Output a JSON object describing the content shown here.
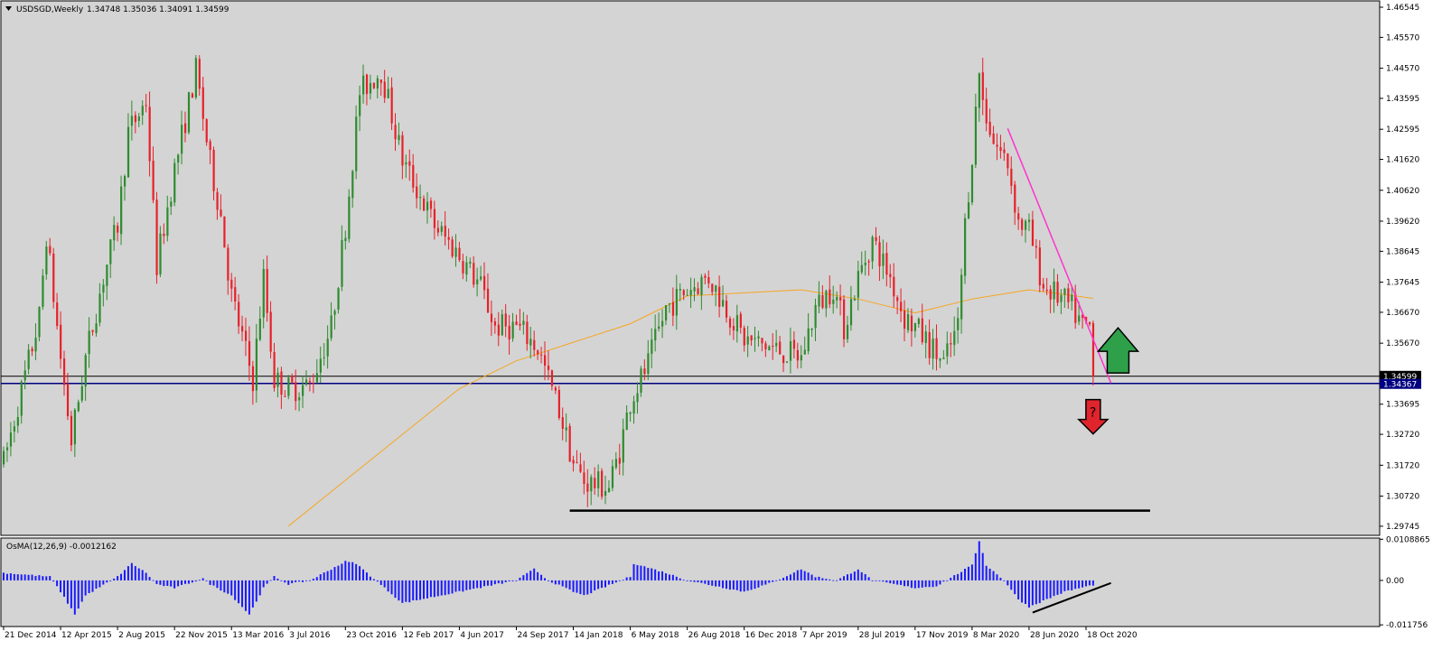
{
  "symbol_header": {
    "title": "USDSGD,Weekly",
    "ohlc": "1.34748 1.35036 1.34091 1.34599"
  },
  "osma_header": {
    "title": "OsMA(12,26,9) -0.0012162"
  },
  "colors": {
    "background": "#d4d4d4",
    "bull_candle": "#2e8b2e",
    "bear_candle": "#e8202a",
    "ma_line": "#f5a623",
    "trend_line": "#ff33cc",
    "support_line": "#000000",
    "price_line": "#000080",
    "histogram": "#1a1aff",
    "up_arrow": "#2ea04a",
    "down_arrow": "#e0242c"
  },
  "icons": {
    "up_arrow": "up-arrow-icon",
    "down_arrow": "down-arrow-question-icon"
  },
  "down_arrow_glyph": "?",
  "chart_data": [
    {
      "type": "candlestick",
      "title": "USDSGD,Weekly",
      "ylim": [
        1.2945,
        1.4675
      ],
      "y_ticks": [
        "1.46545",
        "1.45570",
        "1.44570",
        "1.43595",
        "1.42595",
        "1.41620",
        "1.40620",
        "1.39620",
        "1.38645",
        "1.37645",
        "1.36670",
        "1.35670",
        "1.34599",
        "1.34367",
        "1.33695",
        "1.32720",
        "1.31720",
        "1.30720",
        "1.29745"
      ],
      "x_ticks": [
        "21 Dec 2014",
        "12 Apr 2015",
        "2 Aug 2015",
        "22 Nov 2015",
        "13 Mar 2016",
        "3 Jul 2016",
        "23 Oct 2016",
        "12 Feb 2017",
        "4 Jun 2017",
        "24 Sep 2017",
        "14 Jan 2018",
        "6 May 2018",
        "26 Aug 2018",
        "16 Dec 2018",
        "7 Apr 2019",
        "28 Jul 2019",
        "17 Nov 2019",
        "8 Mar 2020",
        "28 Jun 2020",
        "18 Oct 2020"
      ],
      "last_price": 1.34599,
      "bid_line": 1.34367,
      "anchors": [
        [
          "21 Dec 2014",
          1.318
        ],
        [
          "1 Mar 2015",
          1.365
        ],
        [
          "15 Mar 2015",
          1.392
        ],
        [
          "12 Apr 2015",
          1.352
        ],
        [
          "3 May 2015",
          1.325
        ],
        [
          "31 May 2015",
          1.352
        ],
        [
          "5 Jul 2015",
          1.378
        ],
        [
          "2 Aug 2015",
          1.395
        ],
        [
          "23 Aug 2015",
          1.425
        ],
        [
          "27 Sep 2015",
          1.435
        ],
        [
          "18 Oct 2015",
          1.382
        ],
        [
          "22 Nov 2015",
          1.413
        ],
        [
          "3 Jan 2016",
          1.445
        ],
        [
          "31 Jan 2016",
          1.415
        ],
        [
          "21 Feb 2016",
          1.398
        ],
        [
          "13 Mar 2016",
          1.372
        ],
        [
          "24 Apr 2016",
          1.345
        ],
        [
          "15 May 2016",
          1.378
        ],
        [
          "5 Jun 2016",
          1.345
        ],
        [
          "3 Jul 2016",
          1.342
        ],
        [
          "14 Aug 2016",
          1.343
        ],
        [
          "25 Sep 2016",
          1.362
        ],
        [
          "23 Oct 2016",
          1.395
        ],
        [
          "20 Nov 2016",
          1.438
        ],
        [
          "1 Jan 2017",
          1.445
        ],
        [
          "12 Feb 2017",
          1.416
        ],
        [
          "16 Apr 2017",
          1.395
        ],
        [
          "4 Jun 2017",
          1.385
        ],
        [
          "16 Jul 2017",
          1.375
        ],
        [
          "13 Aug 2017",
          1.362
        ],
        [
          "24 Sep 2017",
          1.362
        ],
        [
          "8 Oct 2017",
          1.36
        ],
        [
          "5 Nov 2017",
          1.355
        ],
        [
          "26 Nov 2017",
          1.345
        ],
        [
          "17 Dec 2017",
          1.335
        ],
        [
          "14 Jan 2018",
          1.318
        ],
        [
          "4 Feb 2018",
          1.312
        ],
        [
          "25 Mar 2018",
          1.31
        ],
        [
          "15 Apr 2018",
          1.322
        ],
        [
          "6 May 2018",
          1.338
        ],
        [
          "10 Jun 2018",
          1.35
        ],
        [
          "15 Jul 2018",
          1.368
        ],
        [
          "26 Aug 2018",
          1.374
        ],
        [
          "7 Oct 2018",
          1.378
        ],
        [
          "28 Oct 2018",
          1.372
        ],
        [
          "16 Dec 2018",
          1.358
        ],
        [
          "10 Feb 2019",
          1.355
        ],
        [
          "7 Apr 2019",
          1.352
        ],
        [
          "5 May 2019",
          1.368
        ],
        [
          "9 Jun 2019",
          1.375
        ],
        [
          "30 Jun 2019",
          1.362
        ],
        [
          "28 Jul 2019",
          1.378
        ],
        [
          "25 Aug 2019",
          1.39
        ],
        [
          "29 Sep 2019",
          1.378
        ],
        [
          "27 Oct 2019",
          1.365
        ],
        [
          "17 Nov 2019",
          1.362
        ],
        [
          "12 Jan 2020",
          1.35
        ],
        [
          "9 Feb 2020",
          1.362
        ],
        [
          "23 Feb 2020",
          1.395
        ],
        [
          "8 Mar 2020",
          1.418
        ],
        [
          "22 Mar 2020",
          1.445
        ],
        [
          "29 Mar 2020",
          1.435
        ],
        [
          "19 Apr 2020",
          1.422
        ],
        [
          "17 May 2020",
          1.415
        ],
        [
          "7 Jun 2020",
          1.396
        ],
        [
          "28 Jun 2020",
          1.393
        ],
        [
          "26 Jul 2020",
          1.375
        ],
        [
          "23 Aug 2020",
          1.372
        ],
        [
          "20 Sep 2020",
          1.368
        ],
        [
          "11 Oct 2020",
          1.362
        ],
        [
          "25 Oct 2020",
          1.362
        ],
        [
          "1 Nov 2020",
          1.346
        ]
      ],
      "ma_line": [
        [
          "3 Jul 2016",
          1.2975
        ],
        [
          "4 Jun 2017",
          1.342
        ],
        [
          "24 Sep 2017",
          1.351
        ],
        [
          "6 May 2018",
          1.363
        ],
        [
          "26 Aug 2018",
          1.372
        ],
        [
          "16 Dec 2018",
          1.373
        ],
        [
          "7 Apr 2019",
          1.374
        ],
        [
          "28 Jul 2019",
          1.371
        ],
        [
          "17 Nov 2019",
          1.3665
        ],
        [
          "8 Mar 2020",
          1.371
        ],
        [
          "28 Jun 2020",
          1.374
        ],
        [
          "1 Nov 2020",
          1.3712
        ]
      ],
      "trendline": [
        [
          "17 May 2020",
          1.4262
        ],
        [
          "6 Dec 2020",
          1.3438
        ]
      ],
      "support_line": [
        [
          "7 Jan 2018",
          1.3025
        ],
        [
          "21 Feb 2021",
          1.3025
        ]
      ],
      "annotations": [
        {
          "type": "up-arrow",
          "date": "20 Dec 2020",
          "price": 1.3535
        },
        {
          "type": "down-arrow",
          "date": "1 Nov 2020",
          "price": 1.332,
          "label": "?"
        }
      ]
    },
    {
      "type": "histogram",
      "title": "OsMA(12,26,9) -0.0012162",
      "ylim": [
        -0.0122,
        0.0112
      ],
      "y_ticks": [
        "0.0108865",
        "0.00",
        "-0.011756"
      ],
      "last_value": -0.0012162,
      "anchors": [
        [
          "21 Dec 2014",
          0.002
        ],
        [
          "22 Mar 2015",
          0.001
        ],
        [
          "12 Apr 2015",
          -0.003
        ],
        [
          "10 May 2015",
          -0.009
        ],
        [
          "31 May 2015",
          -0.004
        ],
        [
          "2 Aug 2015",
          0.001
        ],
        [
          "30 Aug 2015",
          0.0045
        ],
        [
          "27 Sep 2015",
          0.002
        ],
        [
          "18 Oct 2015",
          -0.001
        ],
        [
          "22 Nov 2015",
          -0.002
        ],
        [
          "17 Jan 2016",
          0.0005
        ],
        [
          "31 Jan 2016",
          -0.001
        ],
        [
          "13 Mar 2016",
          -0.004
        ],
        [
          "17 Apr 2016",
          -0.009
        ],
        [
          "15 May 2016",
          -0.002
        ],
        [
          "5 Jun 2016",
          0.001
        ],
        [
          "3 Jul 2016",
          -0.001
        ],
        [
          "14 Aug 2016",
          0.0
        ],
        [
          "23 Oct 2016",
          0.005
        ],
        [
          "13 Nov 2016",
          0.0045
        ],
        [
          "4 Dec 2016",
          0.002
        ],
        [
          "8 Jan 2017",
          -0.002
        ],
        [
          "12 Feb 2017",
          -0.006
        ],
        [
          "4 Jun 2017",
          -0.003
        ],
        [
          "24 Sep 2017",
          0.0
        ],
        [
          "29 Oct 2017",
          0.003
        ],
        [
          "26 Nov 2017",
          0.0
        ],
        [
          "14 Jan 2018",
          -0.003
        ],
        [
          "4 Feb 2018",
          -0.004
        ],
        [
          "6 May 2018",
          0.001
        ],
        [
          "13 May 2018",
          0.0045
        ],
        [
          "15 Jul 2018",
          0.002
        ],
        [
          "26 Aug 2018",
          0.0
        ],
        [
          "16 Dec 2018",
          -0.003
        ],
        [
          "10 Feb 2019",
          -0.0005
        ],
        [
          "7 Apr 2019",
          0.003
        ],
        [
          "5 May 2019",
          0.001
        ],
        [
          "16 Jun 2019",
          0.0
        ],
        [
          "28 Jul 2019",
          0.003
        ],
        [
          "25 Aug 2019",
          0.0
        ],
        [
          "17 Nov 2019",
          -0.002
        ],
        [
          "29 Dec 2019",
          -0.0015
        ],
        [
          "8 Mar 2020",
          0.004
        ],
        [
          "22 Mar 2020",
          0.0105
        ],
        [
          "5 Apr 2020",
          0.004
        ],
        [
          "10 May 2020",
          0.0
        ],
        [
          "7 Jun 2020",
          -0.005
        ],
        [
          "28 Jun 2020",
          -0.007
        ],
        [
          "6 Sep 2020",
          -0.003
        ],
        [
          "1 Nov 2020",
          -0.0012
        ]
      ],
      "trendline": [
        [
          "5 Jul 2020",
          -0.0085
        ],
        [
          "6 Dec 2020",
          -0.0007
        ]
      ]
    }
  ]
}
